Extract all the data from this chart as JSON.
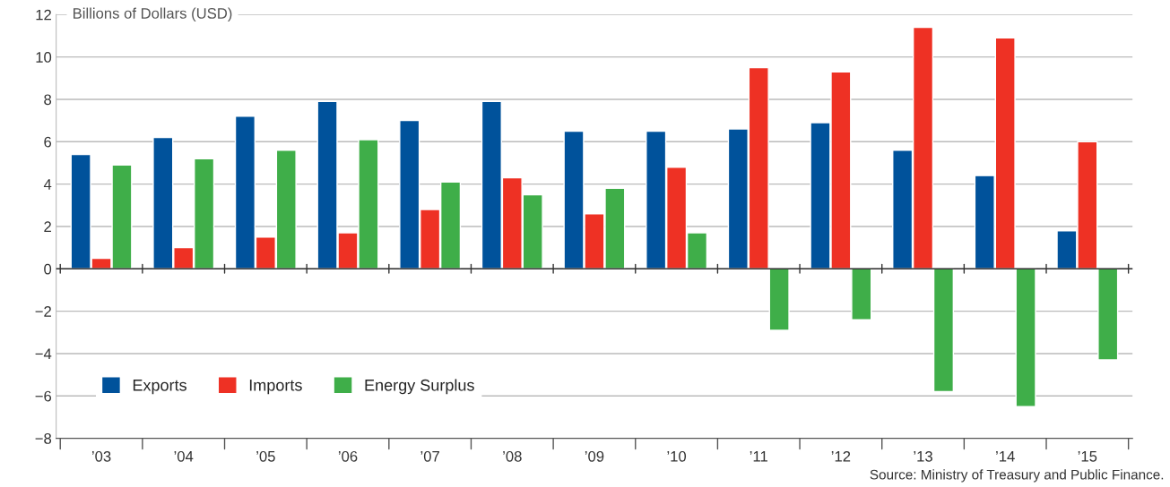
{
  "chart_data": {
    "type": "bar",
    "ylabel": "Billions of Dollars (USD)",
    "categories": [
      "’03",
      "’04",
      "’05",
      "’06",
      "’07",
      "’08",
      "’09",
      "’10",
      "’11",
      "’12",
      "’13",
      "’14",
      "’15"
    ],
    "series": [
      {
        "name": "Exports",
        "color": "#00529b",
        "values": [
          5.4,
          6.2,
          7.2,
          7.9,
          7.0,
          7.9,
          6.5,
          6.5,
          6.6,
          6.9,
          5.6,
          4.4,
          1.8
        ]
      },
      {
        "name": "Imports",
        "color": "#ee3124",
        "values": [
          0.5,
          1.0,
          1.5,
          1.7,
          2.8,
          4.3,
          2.6,
          4.8,
          9.5,
          9.3,
          11.4,
          10.9,
          6.0
        ]
      },
      {
        "name": "Energy Surplus",
        "color": "#3fae49",
        "values": [
          4.9,
          5.2,
          5.6,
          6.1,
          4.1,
          3.5,
          3.8,
          1.7,
          -2.9,
          -2.4,
          -5.8,
          -6.5,
          -4.3
        ]
      }
    ],
    "ylim": [
      -8,
      12
    ],
    "yticks": [
      {
        "value": -8,
        "label": "−8"
      },
      {
        "value": -6,
        "label": "−6"
      },
      {
        "value": -4,
        "label": "−4"
      },
      {
        "value": -2,
        "label": "−2"
      },
      0,
      2,
      4,
      6,
      8,
      10,
      12
    ],
    "grid": "y",
    "legend": "bottom left",
    "annotations": [
      "Source: Ministry of Treasury and Public Finance."
    ]
  }
}
